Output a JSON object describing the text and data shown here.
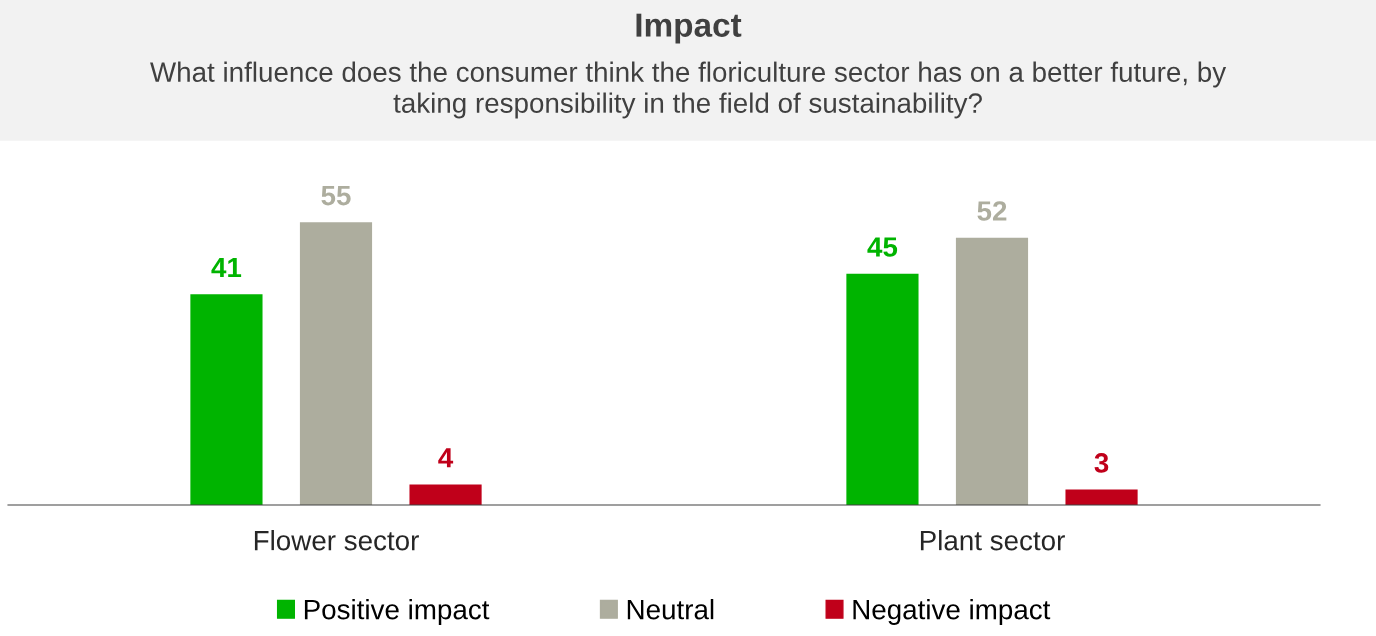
{
  "chart_data": {
    "type": "bar",
    "title": "Impact",
    "subtitle": "What influence does the consumer think the floriculture sector has on a better future, by\ntaking responsibility in the field of sustainability?",
    "categories": [
      "Flower sector",
      "Plant sector"
    ],
    "series": [
      {
        "name": "Positive impact",
        "color": "#00b400",
        "values": [
          41,
          45
        ]
      },
      {
        "name": "Neutral",
        "color": "#adad9e",
        "values": [
          55,
          52
        ]
      },
      {
        "name": "Negative impact",
        "color": "#c0001a",
        "values": [
          4,
          3
        ]
      }
    ],
    "data_labels": true,
    "legend": "bottom",
    "grid": false,
    "tick_labels": "x"
  }
}
